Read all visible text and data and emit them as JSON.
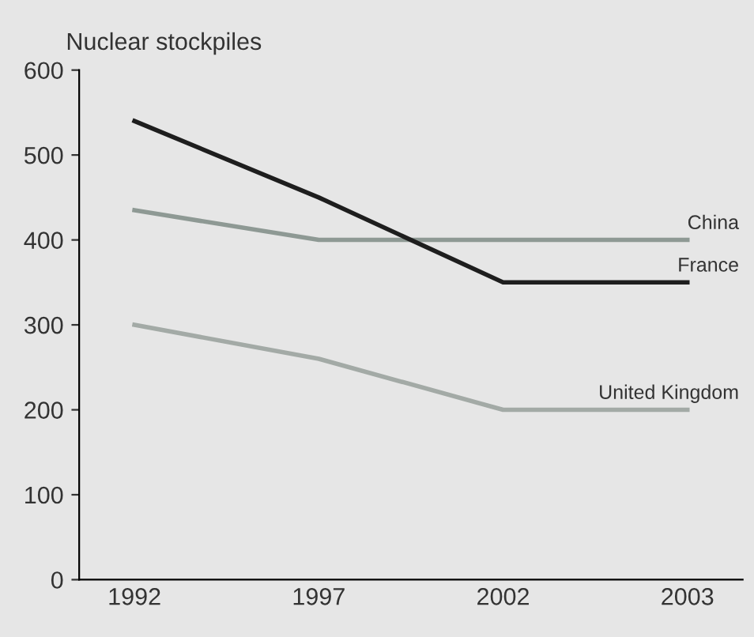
{
  "chart_data": {
    "type": "line",
    "ylabel": "Nuclear stockpiles",
    "categories": [
      "1992",
      "1997",
      "2002",
      "2003"
    ],
    "ylim": [
      0,
      600
    ],
    "yticks": [
      0,
      100,
      200,
      300,
      400,
      500,
      600
    ],
    "grid": false,
    "legend": false,
    "marker": "none",
    "line_style": "solid",
    "series": [
      {
        "name": "China",
        "color": "#8e9994",
        "values": [
          435,
          400,
          400,
          400
        ]
      },
      {
        "name": "France",
        "color": "#1e1e1e",
        "values": [
          540,
          450,
          350,
          350
        ]
      },
      {
        "name": "United Kingdom",
        "color": "#a3aaa6",
        "values": [
          300,
          260,
          200,
          200
        ]
      }
    ]
  }
}
